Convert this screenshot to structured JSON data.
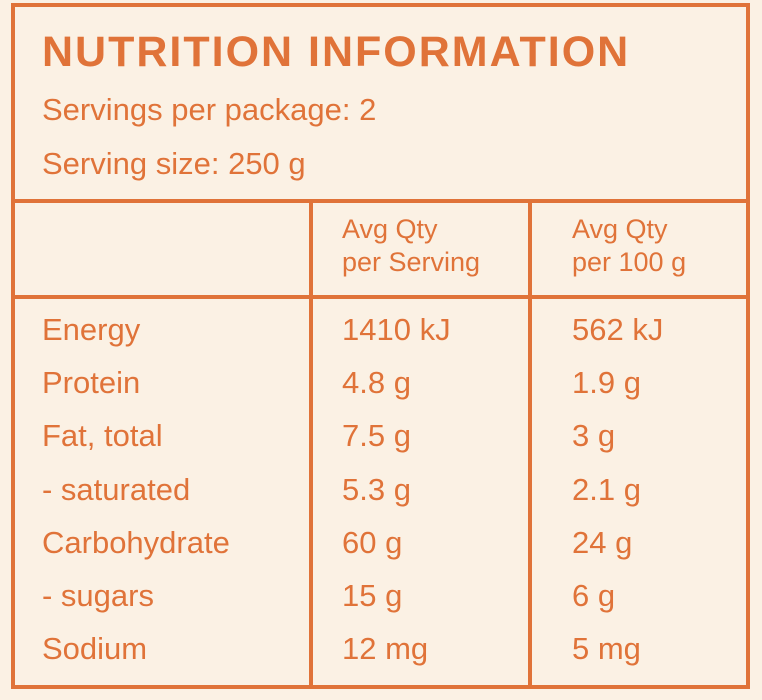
{
  "panel": {
    "title": "NUTRITION INFORMATION",
    "servings_per_package": "Servings per package: 2",
    "serving_size": "Serving size: 250 g"
  },
  "table": {
    "column_headers": [
      {
        "line1": "Avg Qty",
        "line2": "per Serving"
      },
      {
        "line1": "Avg Qty",
        "line2": "per 100 g"
      }
    ],
    "rows": [
      {
        "nutrient": "Energy",
        "per_serving": "1410 kJ",
        "per_100g": "562 kJ"
      },
      {
        "nutrient": "Protein",
        "per_serving": "4.8 g",
        "per_100g": "1.9 g"
      },
      {
        "nutrient": "Fat, total",
        "per_serving": "7.5 g",
        "per_100g": "3 g"
      },
      {
        "nutrient": "- saturated",
        "per_serving": "5.3 g",
        "per_100g": "2.1 g"
      },
      {
        "nutrient": "Carbohydrate",
        "per_serving": "60 g",
        "per_100g": "24 g"
      },
      {
        "nutrient": "- sugars",
        "per_serving": "15 g",
        "per_100g": "6 g"
      },
      {
        "nutrient": "Sodium",
        "per_serving": "12 mg",
        "per_100g": "5 mg"
      }
    ]
  },
  "colors": {
    "accent": "#e07339",
    "background": "#fbf1e4"
  }
}
